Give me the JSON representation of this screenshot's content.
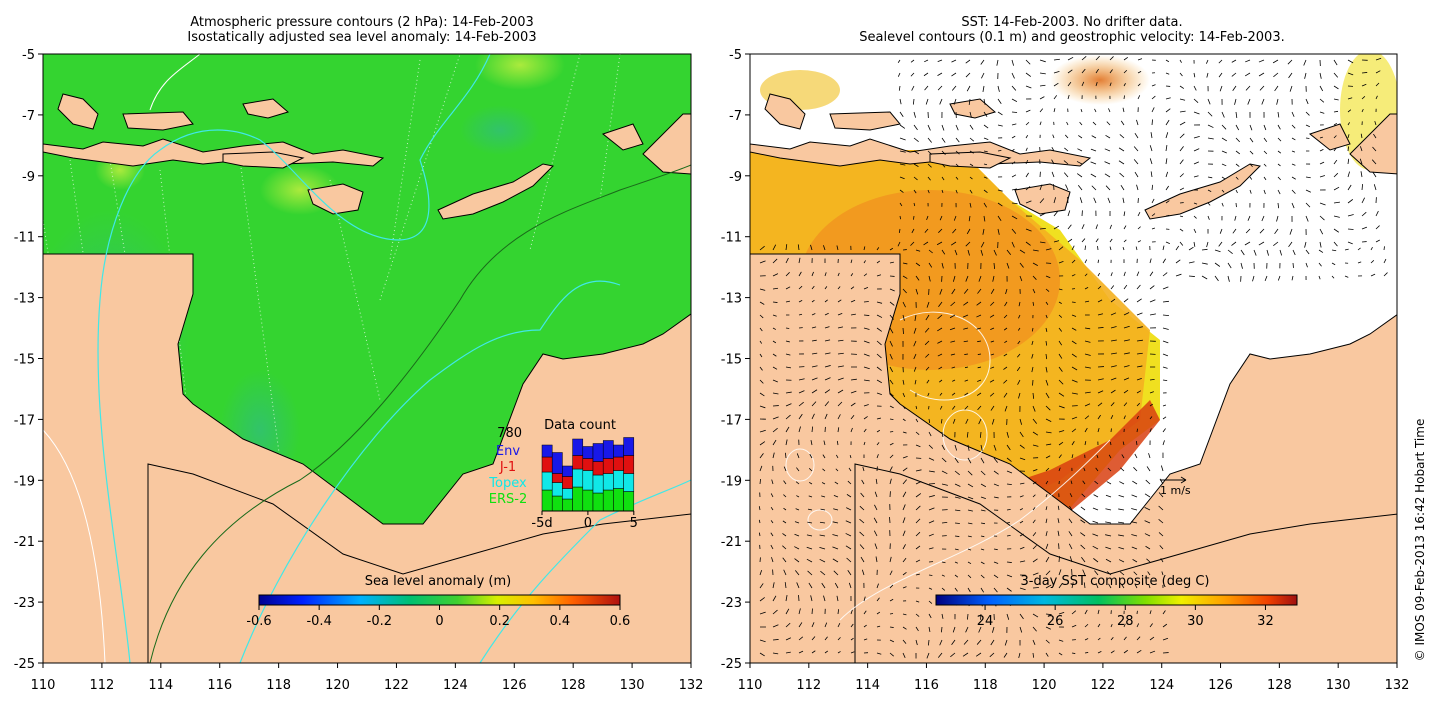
{
  "left_panel": {
    "title_line1": "Atmospheric pressure contours (2 hPa): 14-Feb-2003",
    "title_line2": "Isostatically adjusted sea level anomaly: 14-Feb-2003",
    "colorbar": {
      "label": "Sea level anomaly (m)",
      "ticks": [
        "-0.6",
        "-0.4",
        "-0.2",
        "0",
        "0.2",
        "0.4",
        "0.6"
      ],
      "range": [
        -0.6,
        0.6
      ]
    },
    "data_count": {
      "title": "Data count",
      "total": "780",
      "legend": [
        {
          "name": "Env",
          "color": "#1818e8"
        },
        {
          "name": "J-1",
          "color": "#e01010"
        },
        {
          "name": "Topex",
          "color": "#10e8e8"
        },
        {
          "name": "ERS-2",
          "color": "#10e010"
        }
      ],
      "x_ticks": [
        "-5d",
        "0",
        "5"
      ],
      "bars": [
        {
          "day": -5,
          "ers2": 14,
          "topex": 12,
          "j1": 10,
          "env": 8
        },
        {
          "day": -4,
          "ers2": 10,
          "topex": 9,
          "j1": 6,
          "env": 14
        },
        {
          "day": -3,
          "ers2": 8,
          "topex": 7,
          "j1": 8,
          "env": 7
        },
        {
          "day": -2,
          "ers2": 16,
          "topex": 12,
          "j1": 9,
          "env": 11
        },
        {
          "day": -1,
          "ers2": 14,
          "topex": 13,
          "j1": 8,
          "env": 8
        },
        {
          "day": 0,
          "ers2": 12,
          "topex": 12,
          "j1": 9,
          "env": 12
        },
        {
          "day": 1,
          "ers2": 14,
          "topex": 11,
          "j1": 10,
          "env": 12
        },
        {
          "day": 2,
          "ers2": 15,
          "topex": 12,
          "j1": 9,
          "env": 8
        },
        {
          "day": 3,
          "ers2": 13,
          "topex": 12,
          "j1": 12,
          "env": 12
        }
      ]
    }
  },
  "right_panel": {
    "title_line1": "SST: 14-Feb-2003. No drifter data.",
    "title_line2": "Sealevel contours (0.1 m) and geostrophic velocity: 14-Feb-2003.",
    "colorbar": {
      "label": "3-day SST composite (deg C)",
      "ticks": [
        "24",
        "26",
        "28",
        "30",
        "32"
      ],
      "range": [
        22.6,
        32.9
      ]
    },
    "scale_arrow_label": "1 m/s"
  },
  "axes": {
    "lon_ticks": [
      "110",
      "112",
      "114",
      "116",
      "118",
      "120",
      "122",
      "124",
      "126",
      "128",
      "130",
      "132"
    ],
    "lat_ticks": [
      "-5",
      "-7",
      "-9",
      "-11",
      "-13",
      "-15",
      "-17",
      "-19",
      "-21",
      "-23",
      "-25"
    ],
    "lon_range": [
      110,
      132
    ],
    "lat_range": [
      -25,
      -5
    ]
  },
  "colors": {
    "land": "#f9c8a0",
    "ocean_slanom": "#34d430",
    "isobath": "#40e8e8"
  },
  "credit": "© IMOS 09-Feb-2013 16:42 Hobart Time"
}
